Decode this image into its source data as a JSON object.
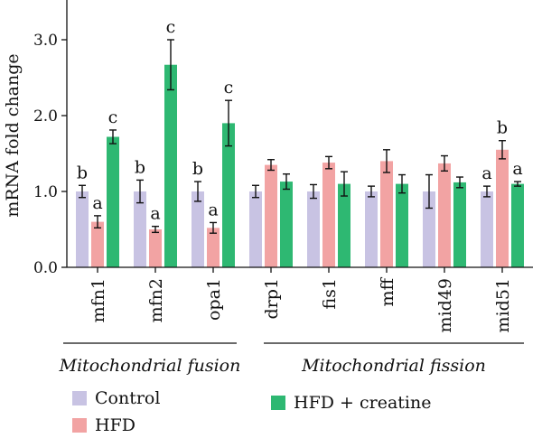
{
  "chart_data": {
    "type": "bar",
    "title": "",
    "xlabel": "",
    "ylabel": "mRNA fold change",
    "ylim": [
      0,
      3.5
    ],
    "yticks": [
      "0.0",
      "1.0",
      "2.0",
      "3.0"
    ],
    "categories": [
      "mfn1",
      "mfn2",
      "opa1",
      "drp1",
      "fis1",
      "mff",
      "mid49",
      "mid51"
    ],
    "series": [
      {
        "name": "Control",
        "color": "#c8c3e3",
        "values": [
          1.0,
          1.0,
          1.0,
          1.0,
          1.0,
          1.0,
          1.0,
          1.0
        ],
        "errors": [
          0.08,
          0.15,
          0.13,
          0.08,
          0.09,
          0.07,
          0.22,
          0.07
        ],
        "labels": [
          "b",
          "b",
          "b",
          "",
          "",
          "",
          "",
          "a"
        ]
      },
      {
        "name": "HFD",
        "color": "#f2a3a3",
        "values": [
          0.6,
          0.5,
          0.52,
          1.35,
          1.38,
          1.4,
          1.37,
          1.55
        ],
        "errors": [
          0.08,
          0.04,
          0.07,
          0.07,
          0.08,
          0.15,
          0.1,
          0.12
        ],
        "labels": [
          "a",
          "a",
          "a",
          "",
          "",
          "",
          "",
          "b"
        ]
      },
      {
        "name": "HFD + creatine",
        "color": "#2eb872",
        "values": [
          1.72,
          2.67,
          1.9,
          1.13,
          1.1,
          1.1,
          1.12,
          1.1
        ],
        "errors": [
          0.09,
          0.33,
          0.3,
          0.1,
          0.16,
          0.12,
          0.07,
          0.03
        ],
        "labels": [
          "c",
          "c",
          "c",
          "",
          "",
          "",
          "",
          "a"
        ]
      }
    ],
    "groups": [
      {
        "label": "Mitochondrial fusion",
        "categories": [
          "mfn1",
          "mfn2",
          "opa1"
        ]
      },
      {
        "label": "Mitochondrial fission",
        "categories": [
          "drp1",
          "fis1",
          "mff",
          "mid49",
          "mid51"
        ]
      }
    ],
    "legend": {
      "placement": "bottom",
      "items": [
        "Control",
        "HFD",
        "HFD + creatine"
      ]
    },
    "grid": false
  }
}
